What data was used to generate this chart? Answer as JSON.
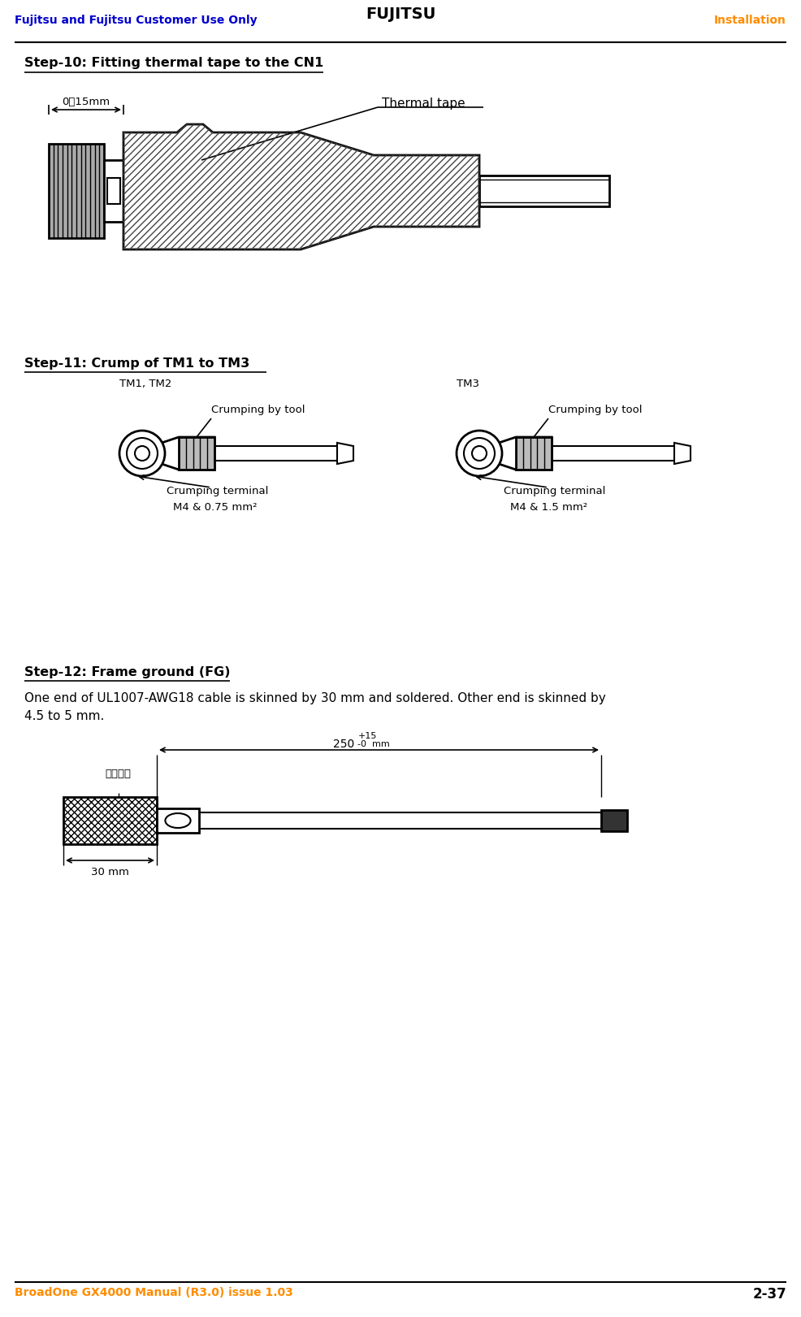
{
  "header_left": "Fujitsu and Fujitsu Customer Use Only",
  "header_center": "FUJITSU",
  "header_right": "Installation",
  "footer_left": "BroadOne GX4000 Manual (R3.0) issue 1.03",
  "footer_right": "2-37",
  "header_color": "#0000CC",
  "header_right_color": "#FF8C00",
  "footer_color": "#FF8C00",
  "footer_right_color": "#000000",
  "step10_title": "Step-10: Fitting thermal tape to the CN1",
  "step11_title": "Step-11: Crump of TM1 to TM3",
  "step12_title": "Step-12: Frame ground (FG)",
  "step12_text1": "One end of UL1007-AWG18 cable is skinned by 30 mm and soldered. Other end is skinned by",
  "step12_text2": "4.5 to 5 mm.",
  "bg_color": "#ffffff",
  "text_color": "#000000"
}
